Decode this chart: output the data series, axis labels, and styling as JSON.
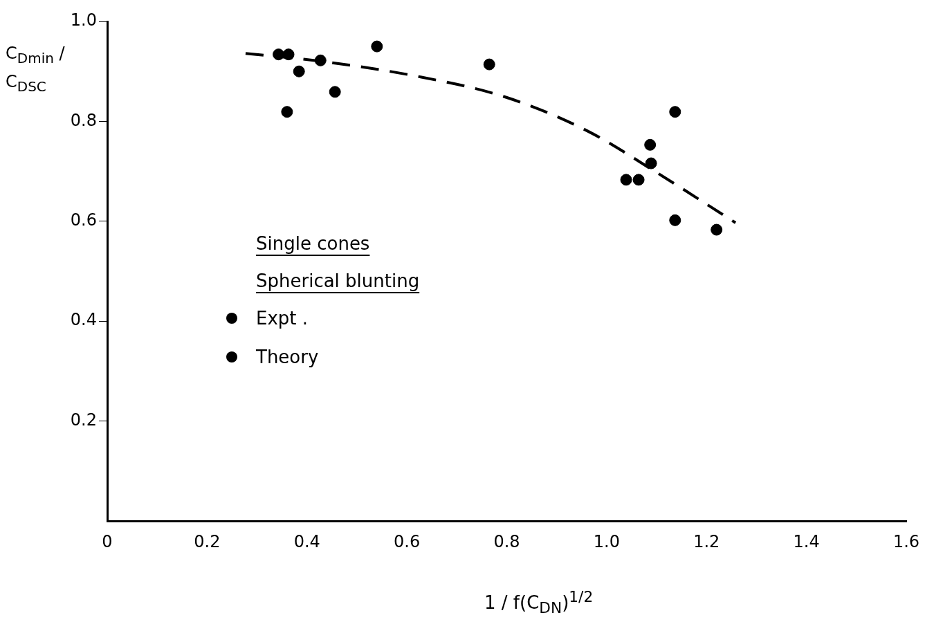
{
  "chart_data": {
    "type": "scatter",
    "xlabel": "1 / f(C$_{DN}$)$^{1/2}$",
    "ylabel": "C$_{Dmin}$ / C$_{DSC}$",
    "legend_title": "Single cones\nSpherical blunting",
    "legend": "left",
    "grid": false,
    "marker": "circle",
    "xlim": [
      0,
      1.6
    ],
    "ylim": [
      0,
      1.0
    ],
    "xticks": [
      0,
      0.2,
      0.4,
      0.6,
      0.8,
      {
        "value": 1.0,
        "label": "1.0"
      },
      1.2,
      1.4,
      1.6
    ],
    "yticks": [
      0.2,
      0.4,
      0.6,
      0.8,
      {
        "value": 1.0,
        "label": "1.0"
      }
    ],
    "series": [
      {
        "name": "Expt .",
        "color": "#000000",
        "x": [
          0.343,
          0.363,
          0.384,
          0.427,
          0.456,
          0.765,
          1.039,
          1.064,
          1.089,
          1.137,
          1.137,
          1.22
        ],
        "values": [
          0.934,
          0.934,
          0.9,
          0.922,
          0.859,
          0.914,
          0.683,
          0.683,
          0.716,
          0.819,
          0.602,
          0.583
        ]
      },
      {
        "name": "Theory",
        "color": "#000000",
        "x": [
          0.36,
          0.54,
          1.087
        ],
        "values": [
          0.819,
          0.95,
          0.753
        ]
      },
      {
        "type": "line",
        "color": "#000000",
        "line_style": "dashed",
        "marker": "none",
        "x": [
          0.277,
          0.422,
          0.616,
          0.796,
          0.963,
          1.101,
          1.258
        ],
        "values": [
          0.936,
          0.921,
          0.891,
          0.849,
          0.78,
          0.697,
          0.597
        ]
      }
    ]
  }
}
